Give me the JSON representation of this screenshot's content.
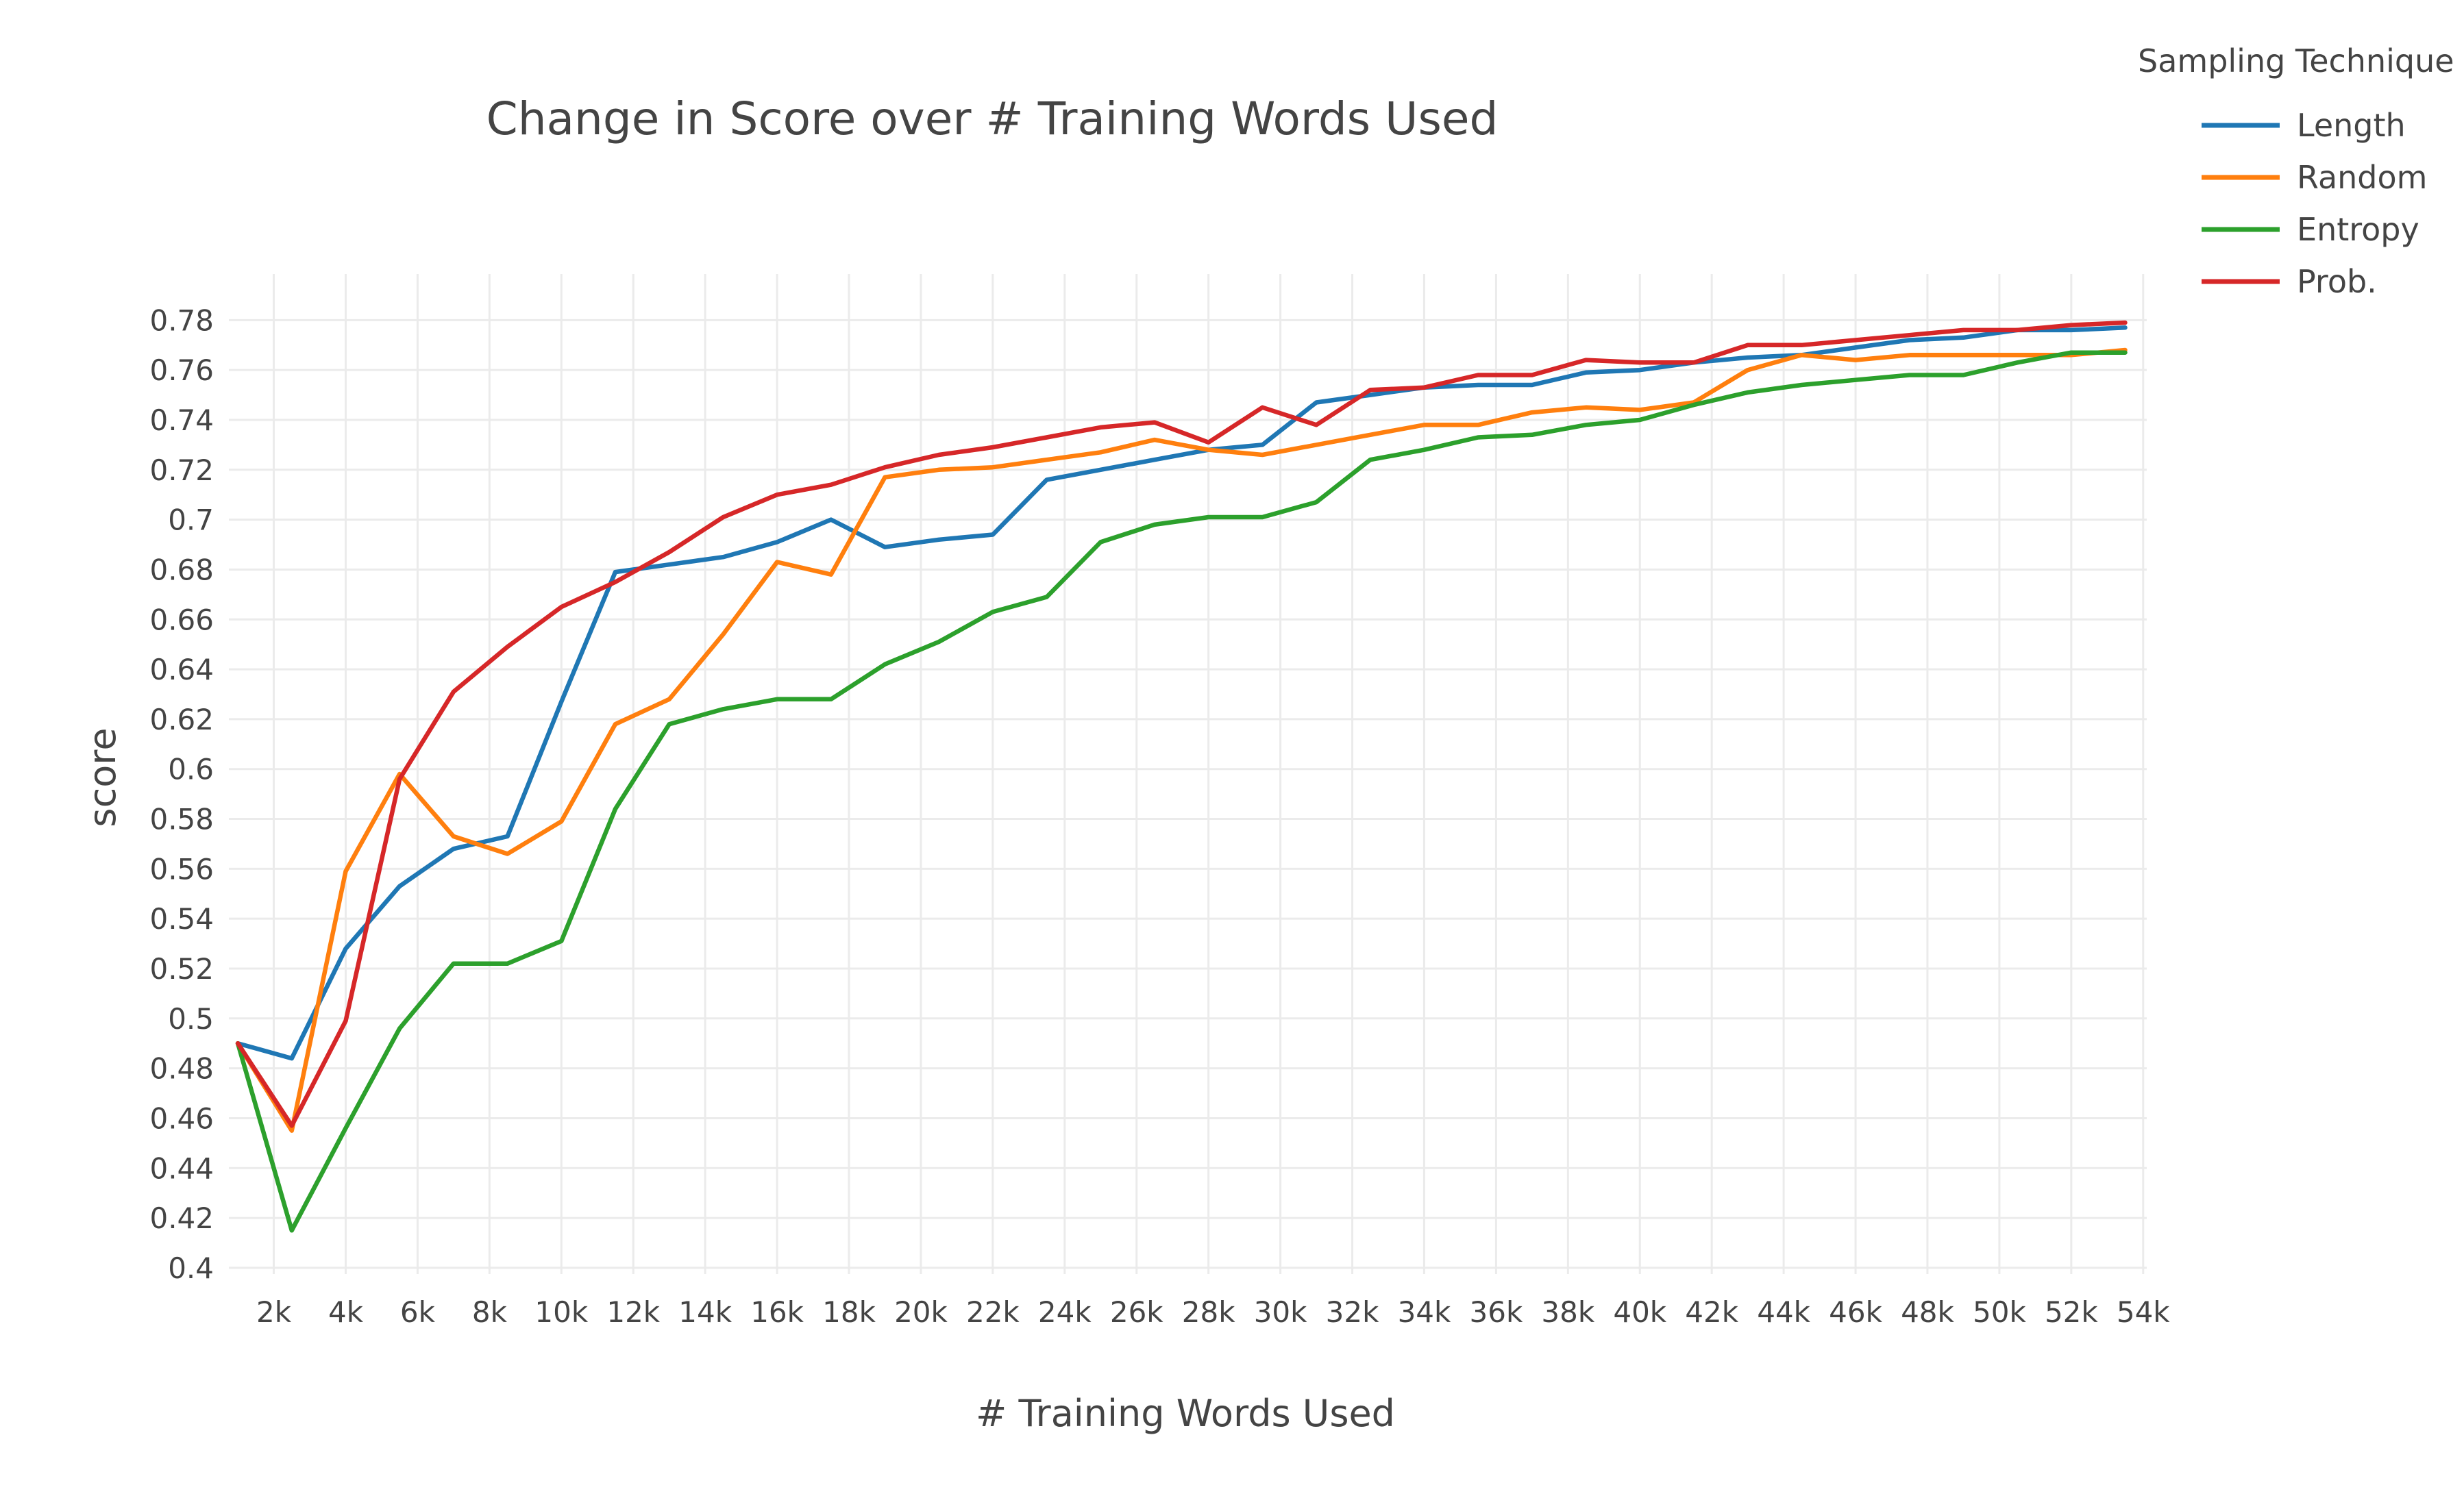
{
  "chart_data": {
    "type": "line",
    "title": "Change in Score over # Training Words Used",
    "xlabel": "# Training Words Used",
    "ylabel": "score",
    "xlim": [
      750,
      54100
    ],
    "ylim": [
      0.3975,
      0.7985
    ],
    "x_tick_values": [
      2000,
      4000,
      6000,
      8000,
      10000,
      12000,
      14000,
      16000,
      18000,
      20000,
      22000,
      24000,
      26000,
      28000,
      30000,
      32000,
      34000,
      36000,
      38000,
      40000,
      42000,
      44000,
      46000,
      48000,
      50000,
      52000,
      54000
    ],
    "x_tick_labels": [
      "2k",
      "4k",
      "6k",
      "8k",
      "10k",
      "12k",
      "14k",
      "16k",
      "18k",
      "20k",
      "22k",
      "24k",
      "26k",
      "28k",
      "30k",
      "32k",
      "34k",
      "36k",
      "38k",
      "40k",
      "42k",
      "44k",
      "46k",
      "48k",
      "50k",
      "52k",
      "54k"
    ],
    "y_tick_values": [
      0.4,
      0.42,
      0.44,
      0.46,
      0.48,
      0.5,
      0.52,
      0.54,
      0.56,
      0.58,
      0.6,
      0.62,
      0.64,
      0.66,
      0.68,
      0.7,
      0.72,
      0.74,
      0.76,
      0.78
    ],
    "y_tick_labels": [
      "0.4",
      "0.42",
      "0.44",
      "0.46",
      "0.48",
      "0.5",
      "0.52",
      "0.54",
      "0.56",
      "0.58",
      "0.6",
      "0.62",
      "0.64",
      "0.66",
      "0.68",
      "0.7",
      "0.72",
      "0.74",
      "0.76",
      "0.78"
    ],
    "grid": true,
    "legend": {
      "title": "Sampling Technique",
      "placement": "top-right"
    },
    "x": [
      1000,
      2500,
      4000,
      5500,
      7000,
      8500,
      10000,
      11500,
      13000,
      14500,
      16000,
      17500,
      19000,
      20500,
      22000,
      23500,
      25000,
      26500,
      28000,
      29500,
      31000,
      32500,
      34000,
      35500,
      37000,
      38500,
      40000,
      41500,
      43000,
      44500,
      46000,
      47500,
      49000,
      50500,
      52000,
      53500
    ],
    "series": [
      {
        "name": "Length",
        "color": "#1f77b4",
        "values": [
          0.49,
          0.484,
          0.528,
          0.553,
          0.568,
          0.573,
          0.627,
          0.679,
          0.682,
          0.685,
          0.691,
          0.7,
          0.689,
          0.692,
          0.694,
          0.716,
          0.72,
          0.724,
          0.728,
          0.73,
          0.747,
          0.75,
          0.753,
          0.754,
          0.754,
          0.759,
          0.76,
          0.763,
          0.765,
          0.766,
          0.769,
          0.772,
          0.773,
          0.776,
          0.776,
          0.777
        ]
      },
      {
        "name": "Random",
        "color": "#ff7f0e",
        "values": [
          0.49,
          0.455,
          0.559,
          0.598,
          0.573,
          0.566,
          0.579,
          0.618,
          0.628,
          0.654,
          0.683,
          0.678,
          0.717,
          0.72,
          0.721,
          0.724,
          0.727,
          0.732,
          0.728,
          0.726,
          0.73,
          0.734,
          0.738,
          0.738,
          0.743,
          0.745,
          0.744,
          0.747,
          0.76,
          0.766,
          0.764,
          0.766,
          0.766,
          0.766,
          0.766,
          0.768
        ]
      },
      {
        "name": "Entropy",
        "color": "#2ca02c",
        "values": [
          0.49,
          0.415,
          0.456,
          0.496,
          0.522,
          0.522,
          0.531,
          0.584,
          0.618,
          0.624,
          0.628,
          0.628,
          0.642,
          0.651,
          0.663,
          0.669,
          0.691,
          0.698,
          0.701,
          0.701,
          0.707,
          0.724,
          0.728,
          0.733,
          0.734,
          0.738,
          0.74,
          0.746,
          0.751,
          0.754,
          0.756,
          0.758,
          0.758,
          0.763,
          0.767,
          0.767
        ]
      },
      {
        "name": "Prob.",
        "color": "#d62728",
        "values": [
          0.49,
          0.457,
          0.499,
          0.596,
          0.631,
          0.649,
          0.665,
          0.675,
          0.687,
          0.701,
          0.71,
          0.714,
          0.721,
          0.726,
          0.729,
          0.733,
          0.737,
          0.739,
          0.731,
          0.745,
          0.738,
          0.752,
          0.753,
          0.758,
          0.758,
          0.764,
          0.763,
          0.763,
          0.77,
          0.77,
          0.772,
          0.774,
          0.776,
          0.776,
          0.778,
          0.779
        ]
      }
    ]
  }
}
